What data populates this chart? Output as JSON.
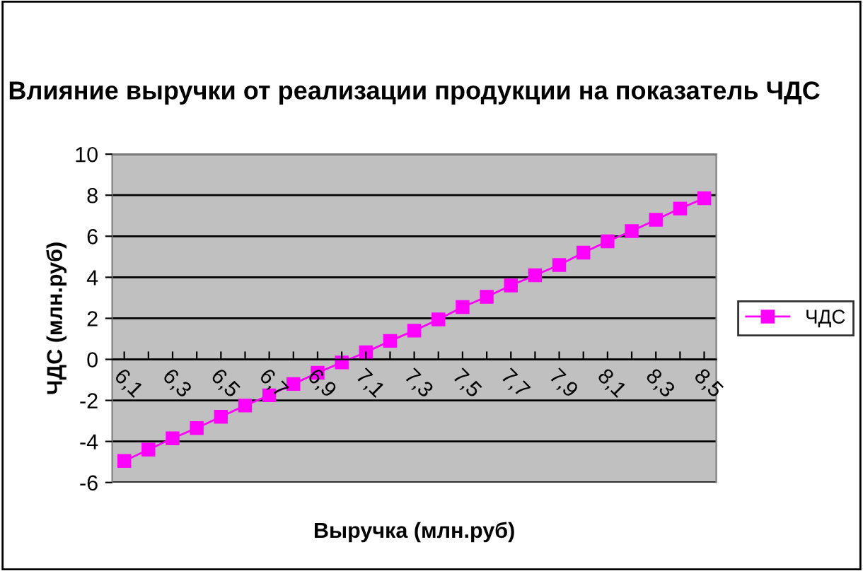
{
  "chart_data": {
    "type": "line",
    "title": "Влияние выручки от реализации продукции на показатель ЧДС",
    "xlabel": "Выручка (млн.руб)",
    "ylabel": "ЧДС (млн.руб)",
    "categories": [
      "6,1",
      null,
      "6,3",
      null,
      "6,5",
      null,
      "6,7",
      null,
      "6,9",
      null,
      "7,1",
      null,
      "7,3",
      null,
      "7,5",
      null,
      "7,7",
      null,
      "7,9",
      null,
      "8,1",
      null,
      "8,3",
      null,
      "8,5"
    ],
    "series": [
      {
        "name": "ЧДС",
        "color": "#ff00ff",
        "values": [
          -4.95,
          -4.4,
          -3.85,
          -3.35,
          -2.8,
          -2.25,
          -1.75,
          -1.2,
          -0.65,
          -0.15,
          0.35,
          0.9,
          1.4,
          1.95,
          2.55,
          3.05,
          3.6,
          4.1,
          4.6,
          5.2,
          5.75,
          6.25,
          6.8,
          7.35,
          7.85
        ]
      }
    ],
    "ylim": [
      -6,
      10
    ],
    "yticks": [
      -6,
      -4,
      -2,
      0,
      2,
      4,
      6,
      8,
      10
    ],
    "grid": "y",
    "legend": "right",
    "marker": "square",
    "line_style": "solid"
  }
}
